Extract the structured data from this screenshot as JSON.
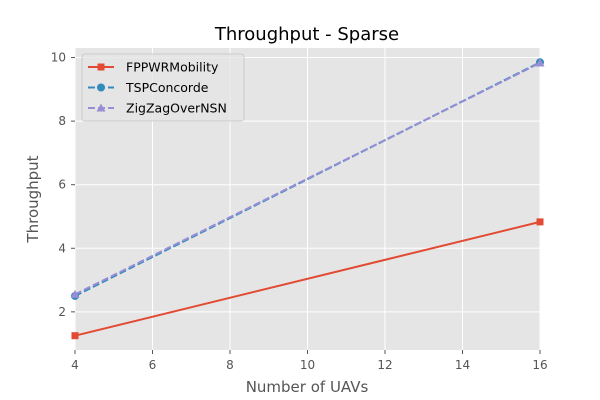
{
  "chart_data": {
    "type": "line",
    "title": "Throughput - Sparse",
    "xlabel": "Number of UAVs",
    "ylabel": "Throughput",
    "x": [
      4,
      16
    ],
    "xlim": [
      4,
      16
    ],
    "ylim": [
      0.8,
      10.3
    ],
    "xticks": [
      4,
      6,
      8,
      10,
      12,
      14,
      16
    ],
    "yticks": [
      2,
      4,
      6,
      8,
      10
    ],
    "grid": true,
    "legend_position": "top-left",
    "series": [
      {
        "name": "FPPWRMobility",
        "values": [
          1.25,
          4.83
        ],
        "color": "#E24A33",
        "marker": "square",
        "linestyle": "solid"
      },
      {
        "name": "TSPConcorde",
        "values": [
          2.5,
          9.85
        ],
        "color": "#348ABD",
        "marker": "circle",
        "linestyle": "dashed"
      },
      {
        "name": "ZigZagOverNSN",
        "values": [
          2.55,
          9.83
        ],
        "color": "#988ED5",
        "marker": "triangle",
        "linestyle": "dashed"
      }
    ]
  }
}
